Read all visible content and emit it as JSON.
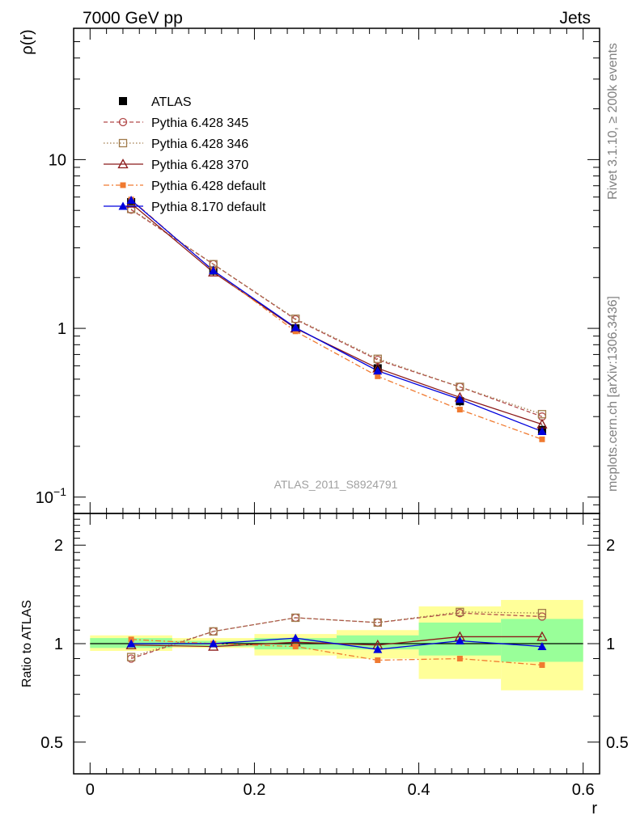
{
  "header": {
    "energy_label": "7000 GeV pp",
    "process_label": "Jets"
  },
  "side_labels": {
    "rivet": "Rivet 3.1.10, ≥ 200k events",
    "mcplots": "mcplots.cern.ch [arXiv:1306.3436]"
  },
  "watermark": "ATLAS_2011_S8924791",
  "chart_data": [
    {
      "type": "line",
      "ylabel": "ρ(r)",
      "yscale": "log",
      "ylim": [
        0.08,
        60
      ],
      "y_ticks": [
        {
          "value": 0.1,
          "base": "10",
          "exp": "−1"
        },
        {
          "value": 1,
          "base": "1",
          "exp": ""
        },
        {
          "value": 10,
          "base": "10",
          "exp": ""
        }
      ],
      "x": [
        0.05,
        0.15,
        0.25,
        0.35,
        0.45,
        0.55
      ],
      "legend_position": "top-left",
      "series": [
        {
          "name": "ATLAS",
          "style": "data",
          "color": "#000000",
          "marker": "square-filled",
          "values": [
            5.6,
            2.2,
            1.0,
            0.58,
            0.37,
            0.25
          ]
        },
        {
          "name": "Pythia 6.428 345",
          "style": "dashed",
          "color": "#b24a4a",
          "marker": "circle-open",
          "values": [
            5.05,
            2.4,
            1.13,
            0.65,
            0.45,
            0.3
          ]
        },
        {
          "name": "Pythia 6.428 346",
          "style": "dotted",
          "color": "#a07a4a",
          "marker": "square-open",
          "values": [
            5.1,
            2.4,
            1.14,
            0.66,
            0.45,
            0.31
          ]
        },
        {
          "name": "Pythia 6.428 370",
          "style": "solid",
          "color": "#8b1a1a",
          "marker": "triangle-open",
          "values": [
            5.5,
            2.15,
            1.0,
            0.58,
            0.39,
            0.27
          ]
        },
        {
          "name": "Pythia 6.428 default",
          "style": "dashdot",
          "color": "#f07a30",
          "marker": "square-filled",
          "values": [
            5.8,
            2.2,
            0.96,
            0.52,
            0.33,
            0.22
          ]
        },
        {
          "name": "Pythia 8.170 default",
          "style": "solid",
          "color": "#0000dd",
          "marker": "triangle-filled",
          "values": [
            5.75,
            2.2,
            1.01,
            0.56,
            0.38,
            0.245
          ]
        }
      ]
    },
    {
      "type": "line",
      "ylabel": "Ratio to ATLAS",
      "yscale": "log",
      "ylim": [
        0.4,
        2.5
      ],
      "y_ticks": [
        0.5,
        1,
        2
      ],
      "x_ticks": [
        0,
        0.2,
        0.4,
        0.6
      ],
      "xlabel": "r",
      "xlim": [
        -0.02,
        0.62
      ],
      "uncertainty_bands": {
        "x_edges": [
          0,
          0.1,
          0.2,
          0.3,
          0.4,
          0.5,
          0.6
        ],
        "outer": {
          "color": "#ffff99",
          "lo": [
            0.95,
            0.97,
            0.92,
            0.9,
            0.78,
            0.72
          ],
          "hi": [
            1.06,
            1.04,
            1.07,
            1.1,
            1.3,
            1.36
          ]
        },
        "inner": {
          "color": "#99ff99",
          "lo": [
            0.97,
            0.98,
            0.96,
            0.96,
            0.92,
            0.88
          ],
          "hi": [
            1.04,
            1.02,
            1.04,
            1.06,
            1.16,
            1.19
          ]
        }
      },
      "series": [
        {
          "name": "Pythia 6.428 345",
          "values": [
            0.9,
            1.09,
            1.2,
            1.16,
            1.24,
            1.21
          ]
        },
        {
          "name": "Pythia 6.428 346",
          "values": [
            0.91,
            1.09,
            1.2,
            1.16,
            1.25,
            1.24
          ]
        },
        {
          "name": "Pythia 6.428 370",
          "values": [
            0.99,
            0.98,
            1.01,
            0.99,
            1.05,
            1.05
          ]
        },
        {
          "name": "Pythia 6.428 default",
          "values": [
            1.03,
            1.0,
            0.98,
            0.89,
            0.9,
            0.86
          ]
        },
        {
          "name": "Pythia 8.170 default",
          "values": [
            1.0,
            1.0,
            1.04,
            0.96,
            1.02,
            0.98
          ]
        }
      ]
    }
  ]
}
